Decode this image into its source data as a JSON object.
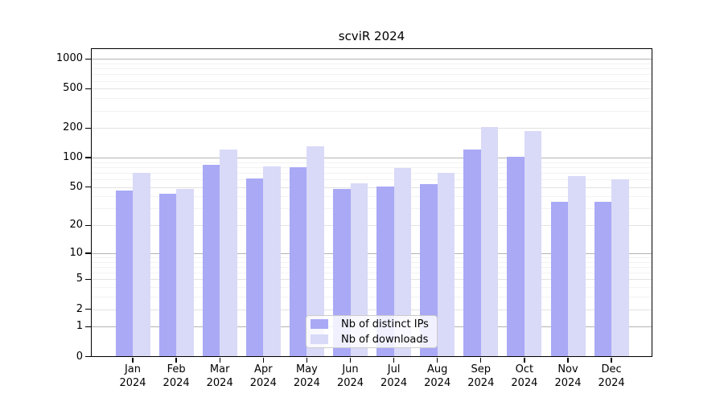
{
  "chart_data": {
    "type": "bar",
    "title": "scviR 2024",
    "year_label": "2024",
    "categories": [
      "Jan",
      "Feb",
      "Mar",
      "Apr",
      "May",
      "Jun",
      "Jul",
      "Aug",
      "Sep",
      "Oct",
      "Nov",
      "Dec"
    ],
    "series": [
      {
        "name": "Nb of distinct IPs",
        "color": "#a9a9f6",
        "values": [
          46,
          43,
          85,
          61,
          80,
          48,
          51,
          54,
          120,
          103,
          35,
          35
        ]
      },
      {
        "name": "Nb of downloads",
        "color": "#d9d9f8",
        "values": [
          70,
          48,
          120,
          82,
          130,
          55,
          78,
          70,
          205,
          187,
          65,
          60
        ]
      }
    ],
    "xlabel": "",
    "ylabel": "",
    "yscale": "log1p",
    "ylim": [
      0,
      1280
    ],
    "yticks": [
      0,
      1,
      2,
      5,
      10,
      20,
      50,
      100,
      200,
      500,
      1000
    ],
    "minor_gridlines": [
      3,
      4,
      6,
      7,
      8,
      9,
      30,
      40,
      60,
      70,
      80,
      90,
      300,
      400,
      600,
      700,
      800,
      900
    ],
    "grid": true,
    "legend_position": "lower-center-inside",
    "colors": {
      "major_grid": "#b3b3b3",
      "labeled_grid": "#e2e2e2",
      "minor_grid": "#f2f2f2",
      "spine": "#000000",
      "text": "#000000",
      "background": "#ffffff"
    }
  }
}
